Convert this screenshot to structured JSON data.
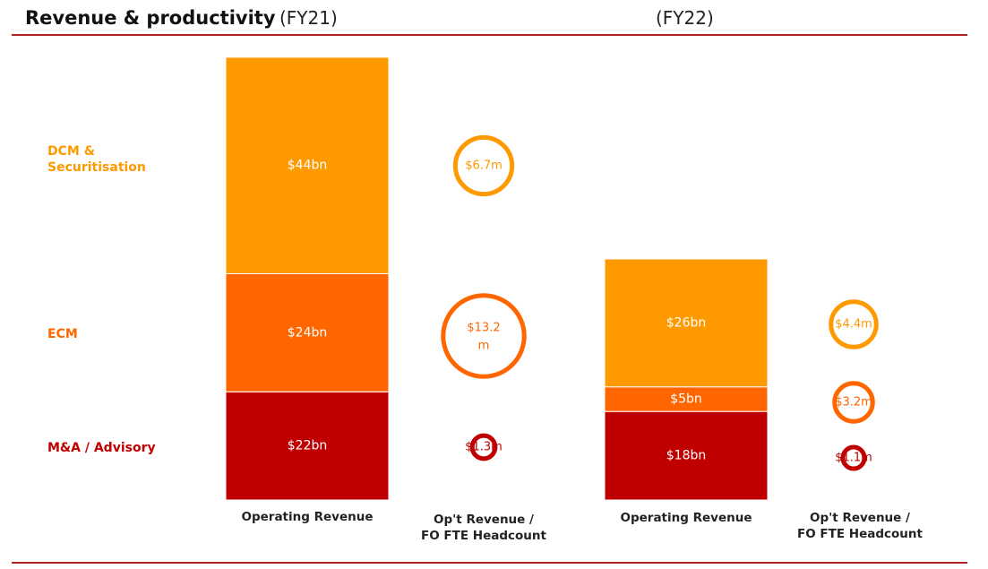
{
  "header": {
    "title": "Revenue & productivity",
    "period_left": "(FY21)",
    "period_right": "(FY22)"
  },
  "row_labels": {
    "dcm_line1": "DCM &",
    "dcm_line2": "Securitisation",
    "ecm": "ECM",
    "ma": "M&A / Advisory"
  },
  "column_headers": {
    "fy21_revenue": "Operating Revenue",
    "fy21_productivity_line1": "Op't Revenue /",
    "fy21_productivity_line2": "FO FTE Headcount",
    "fy22_revenue": "Operating Revenue",
    "fy22_productivity_line1": "Op't Revenue /",
    "fy22_productivity_line2": "FO FTE Headcount"
  },
  "colors": {
    "dcm": "#ff9900",
    "ecm": "#ff6600",
    "ma": "#c00000",
    "rule": "#b22222"
  },
  "chart_data": [
    {
      "type": "bar",
      "period": "FY21",
      "categories": [
        "Operating Revenue"
      ],
      "series": [
        {
          "name": "M&A / Advisory",
          "values": [
            22
          ],
          "label": "$22bn",
          "color": "#c00000"
        },
        {
          "name": "ECM",
          "values": [
            24
          ],
          "label": "$24bn",
          "color": "#ff6600"
        },
        {
          "name": "DCM & Securitisation",
          "values": [
            44
          ],
          "label": "$44bn",
          "color": "#ff9900"
        }
      ]
    },
    {
      "type": "scatter",
      "period": "FY21",
      "categories": [
        "Op't Revenue / FO FTE Headcount"
      ],
      "series": [
        {
          "name": "DCM & Securitisation",
          "values": [
            6.7
          ],
          "label": "$6.7m",
          "color": "#ff9900"
        },
        {
          "name": "ECM",
          "values": [
            13.2
          ],
          "label": "$13.2 m",
          "color": "#ff6600"
        },
        {
          "name": "M&A / Advisory",
          "values": [
            1.3
          ],
          "label": "$1.3m",
          "color": "#c00000"
        }
      ]
    },
    {
      "type": "bar",
      "period": "FY22",
      "categories": [
        "Operating Revenue"
      ],
      "series": [
        {
          "name": "M&A / Advisory",
          "values": [
            18
          ],
          "label": "$18bn",
          "color": "#c00000"
        },
        {
          "name": "ECM",
          "values": [
            5
          ],
          "label": "$5bn",
          "color": "#ff6600"
        },
        {
          "name": "DCM & Securitisation",
          "values": [
            26
          ],
          "label": "$26bn",
          "color": "#ff9900"
        }
      ]
    },
    {
      "type": "scatter",
      "period": "FY22",
      "categories": [
        "Op't Revenue / FO FTE Headcount"
      ],
      "series": [
        {
          "name": "DCM & Securitisation",
          "values": [
            4.4
          ],
          "label": "$4.4m",
          "color": "#ff9900"
        },
        {
          "name": "ECM",
          "values": [
            3.2
          ],
          "label": "$3.2m",
          "color": "#ff6600"
        },
        {
          "name": "M&A / Advisory",
          "values": [
            1.1
          ],
          "label": "$1.1m",
          "color": "#c00000"
        }
      ]
    }
  ]
}
